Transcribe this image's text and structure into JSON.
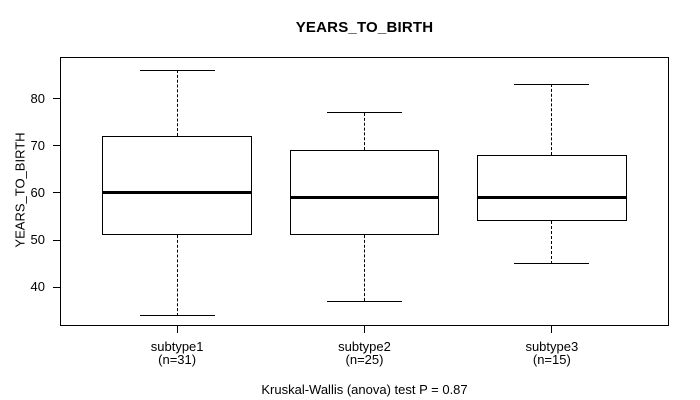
{
  "chart_data": {
    "type": "boxplot",
    "title": "YEARS_TO_BIRTH",
    "ylabel": "YEARS_TO_BIRTH",
    "annotation": "Kruskal-Wallis (anova) test P = 0.87",
    "p_value": 0.87,
    "ylim": [
      32,
      88.6
    ],
    "yticks": [
      40,
      50,
      60,
      70,
      80
    ],
    "grid": false,
    "legend": null,
    "colors": {
      "line": "#000000",
      "median": "#000000",
      "box_fill": "#ffffff",
      "background": "#ffffff",
      "text": "#000000"
    },
    "groups": [
      {
        "label": "subtype1",
        "sublabel": "(n=31)",
        "n": 31,
        "whisker_low": 34,
        "q1": 51,
        "median": 60,
        "q3": 72,
        "whisker_high": 86
      },
      {
        "label": "subtype2",
        "sublabel": "(n=25)",
        "n": 25,
        "whisker_low": 37,
        "q1": 51,
        "median": 59,
        "q3": 69,
        "whisker_high": 77
      },
      {
        "label": "subtype3",
        "sublabel": "(n=15)",
        "n": 15,
        "whisker_low": 45,
        "q1": 54,
        "median": 59,
        "q3": 68,
        "whisker_high": 83
      }
    ]
  }
}
